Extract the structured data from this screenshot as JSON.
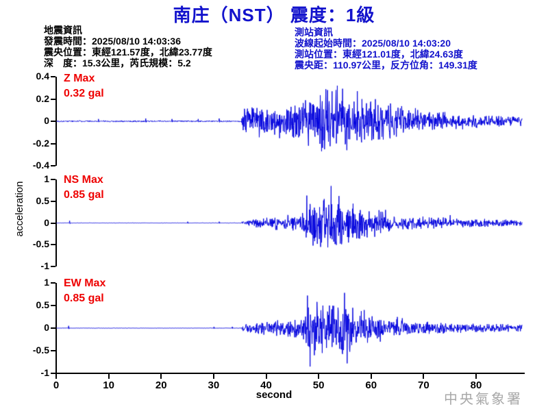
{
  "title": {
    "text": "南庄（NST） 震度：1級",
    "color": "#1212cc"
  },
  "earthquake_info": {
    "heading": "地震資訊",
    "line1": "發震時間：2025/08/10 14:03:36",
    "line2": "震央位置：東經121.57度，北緯23.77度",
    "line3": "深　度：15.3公里，芮氏規模：5.2"
  },
  "station_info": {
    "heading": "測站資訊",
    "line1": "波線起始時間：2025/08/10 14:03:20",
    "line2": "測站位置：東經121.01度，北緯24.63度",
    "line3": "震央距：110.97公里，反方位角：149.31度",
    "color": "#1212cc"
  },
  "watermark": "中央氣象署",
  "chart_data": {
    "type": "line",
    "title": "three-component accelerogram",
    "xlabel": "second",
    "ylabel": "acceleration",
    "x_range": [
      0,
      89
    ],
    "x_ticks": [
      0,
      10,
      20,
      30,
      40,
      50,
      60,
      70,
      80
    ],
    "grid": false,
    "trace_color": "#0000dd",
    "label_color": "#ee0000",
    "onset_time_s": 35.2,
    "channels": [
      {
        "name": "Z",
        "max_label": "Z Max",
        "max_value": "0.32 gal",
        "max_gal": 0.32,
        "ylim": [
          -0.4,
          0.4
        ],
        "y_ticks": [
          0.4,
          0.2,
          0,
          -0.2,
          -0.4
        ],
        "envelope": [
          [
            0,
            0.006
          ],
          [
            35.2,
            0.006
          ],
          [
            35.5,
            0.08
          ],
          [
            36,
            0.12
          ],
          [
            37,
            0.14
          ],
          [
            38.5,
            0.12
          ],
          [
            40,
            0.13
          ],
          [
            42,
            0.12
          ],
          [
            44,
            0.13
          ],
          [
            46,
            0.15
          ],
          [
            47.5,
            0.17
          ],
          [
            49,
            0.2
          ],
          [
            50.5,
            0.24
          ],
          [
            52,
            0.27
          ],
          [
            53,
            0.3
          ],
          [
            54,
            0.24
          ],
          [
            55,
            0.26
          ],
          [
            56.5,
            0.23
          ],
          [
            58,
            0.2
          ],
          [
            60,
            0.17
          ],
          [
            62,
            0.16
          ],
          [
            64,
            0.14
          ],
          [
            66,
            0.11
          ],
          [
            68,
            0.1
          ],
          [
            70,
            0.08
          ],
          [
            73,
            0.07
          ],
          [
            76,
            0.06
          ],
          [
            80,
            0.05
          ],
          [
            84,
            0.045
          ],
          [
            88.7,
            0.04
          ]
        ],
        "spikes": [
          [
            53.5,
            0.32
          ],
          [
            51.6,
            0.28
          ],
          [
            50.5,
            -0.27
          ],
          [
            55.3,
            -0.26
          ],
          [
            57.3,
            0.27
          ],
          [
            48.0,
            -0.22
          ],
          [
            8,
            0.02
          ],
          [
            17,
            0.025
          ],
          [
            22,
            0.02
          ],
          [
            27,
            0.02
          ],
          [
            31,
            0.025
          ]
        ]
      },
      {
        "name": "NS",
        "max_label": "NS Max",
        "max_value": "0.85 gal",
        "max_gal": 0.85,
        "ylim": [
          -1,
          1
        ],
        "y_ticks": [
          1,
          0.5,
          0,
          -0.5,
          -1
        ],
        "envelope": [
          [
            0,
            0.004
          ],
          [
            35.2,
            0.004
          ],
          [
            35.5,
            0.05
          ],
          [
            37,
            0.08
          ],
          [
            39,
            0.1
          ],
          [
            41,
            0.12
          ],
          [
            43,
            0.15
          ],
          [
            45,
            0.17
          ],
          [
            46.5,
            0.18
          ],
          [
            47.5,
            0.3
          ],
          [
            48.5,
            0.45
          ],
          [
            50,
            0.5
          ],
          [
            51.5,
            0.55
          ],
          [
            52.5,
            0.6
          ],
          [
            53.5,
            0.5
          ],
          [
            55,
            0.42
          ],
          [
            56.5,
            0.38
          ],
          [
            58,
            0.32
          ],
          [
            60,
            0.26
          ],
          [
            62,
            0.24
          ],
          [
            64,
            0.18
          ],
          [
            66,
            0.15
          ],
          [
            68,
            0.13
          ],
          [
            71,
            0.11
          ],
          [
            74,
            0.1
          ],
          [
            78,
            0.08
          ],
          [
            83,
            0.07
          ],
          [
            88.7,
            0.06
          ]
        ],
        "spikes": [
          [
            52.3,
            0.85
          ],
          [
            47.7,
            0.63
          ],
          [
            48.9,
            -0.52
          ],
          [
            50.3,
            -0.55
          ],
          [
            53.8,
            0.62
          ],
          [
            51.0,
            0.55
          ],
          [
            55.6,
            -0.45
          ],
          [
            62.7,
            0.3
          ],
          [
            75,
            0.18
          ],
          [
            2.5,
            0.05
          ],
          [
            25,
            0.03
          ],
          [
            31,
            0.03
          ]
        ]
      },
      {
        "name": "EW",
        "max_label": "EW Max",
        "max_value": "0.85 gal",
        "max_gal": 0.85,
        "ylim": [
          -1,
          1
        ],
        "y_ticks": [
          1,
          0.5,
          0,
          -0.5,
          -1
        ],
        "envelope": [
          [
            0,
            0.004
          ],
          [
            35.2,
            0.004
          ],
          [
            35.5,
            0.06
          ],
          [
            37,
            0.09
          ],
          [
            39,
            0.11
          ],
          [
            41,
            0.13
          ],
          [
            43,
            0.15
          ],
          [
            45,
            0.16
          ],
          [
            46.8,
            0.2
          ],
          [
            47.6,
            0.45
          ],
          [
            48.6,
            0.5
          ],
          [
            50,
            0.45
          ],
          [
            51.5,
            0.42
          ],
          [
            53,
            0.45
          ],
          [
            54.5,
            0.5
          ],
          [
            56,
            0.45
          ],
          [
            57.5,
            0.35
          ],
          [
            59,
            0.3
          ],
          [
            61,
            0.27
          ],
          [
            63,
            0.24
          ],
          [
            65,
            0.2
          ],
          [
            67,
            0.16
          ],
          [
            69,
            0.14
          ],
          [
            71,
            0.12
          ],
          [
            74,
            0.1
          ],
          [
            78,
            0.09
          ],
          [
            83,
            0.075
          ],
          [
            88.7,
            0.065
          ]
        ],
        "spikes": [
          [
            47.8,
            0.72
          ],
          [
            48.3,
            -0.85
          ],
          [
            49.1,
            -0.6
          ],
          [
            54.9,
            0.78
          ],
          [
            55.4,
            -0.78
          ],
          [
            52.0,
            0.5
          ],
          [
            58.6,
            0.4
          ],
          [
            50.6,
            -0.55
          ],
          [
            2.3,
            0.05
          ],
          [
            30,
            0.03
          ],
          [
            33.5,
            0.03
          ]
        ]
      }
    ]
  }
}
